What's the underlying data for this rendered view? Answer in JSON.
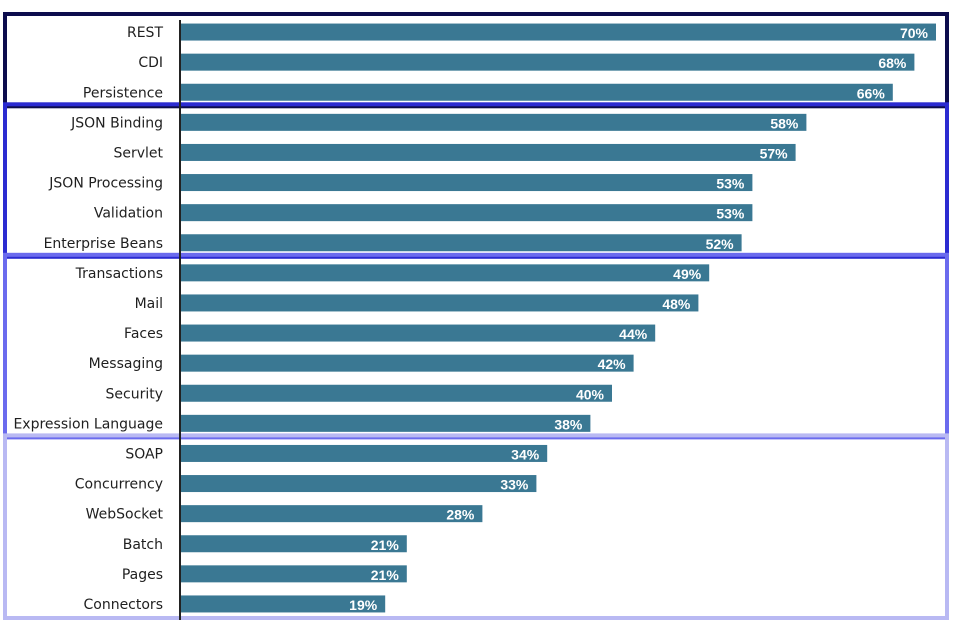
{
  "chart_data": {
    "type": "bar",
    "orientation": "horizontal",
    "title": "",
    "xlabel": "",
    "ylabel": "",
    "xlim": [
      0,
      70
    ],
    "grid": false,
    "legend": "none",
    "bar_color": "#3a7893",
    "value_suffix": "%",
    "categories": [
      "REST",
      "CDI",
      "Persistence",
      "JSON Binding",
      "Servlet",
      "JSON Processing",
      "Validation",
      "Enterprise Beans",
      "Transactions",
      "Mail",
      "Faces",
      "Messaging",
      "Security",
      "Expression Language",
      "SOAP",
      "Concurrency",
      "WebSocket",
      "Batch",
      "Pages",
      "Connectors"
    ],
    "values": [
      70,
      68,
      66,
      58,
      57,
      53,
      53,
      52,
      49,
      48,
      44,
      42,
      40,
      38,
      34,
      33,
      28,
      21,
      21,
      19
    ],
    "value_labels": [
      "70%",
      "68%",
      "66%",
      "58%",
      "57%",
      "53%",
      "53%",
      "52%",
      "49%",
      "48%",
      "44%",
      "42%",
      "40%",
      "38%",
      "34%",
      "33%",
      "28%",
      "21%",
      "21%",
      "19%"
    ],
    "groups": [
      {
        "first": 0,
        "last": 2,
        "color": "#0d0d4d"
      },
      {
        "first": 3,
        "last": 7,
        "color": "#2b2bd1"
      },
      {
        "first": 8,
        "last": 13,
        "color": "#6b6bee"
      },
      {
        "first": 14,
        "last": 19,
        "color": "#b9b9f3"
      }
    ]
  }
}
